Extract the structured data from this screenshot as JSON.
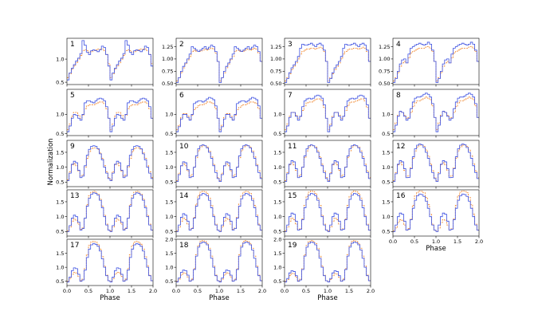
{
  "chart_data": {
    "type": "line",
    "layout": "small-multiples grid, 5 rows x 4 columns, 19 panels",
    "xlabel": "Phase",
    "ylabel": "Normalization",
    "xlim": [
      0.0,
      2.0
    ],
    "x_ticks": [
      "0.0",
      "0.5",
      "1.0",
      "1.5",
      "2.0"
    ],
    "line_style": "step",
    "series_colors": {
      "series_1": "#3b4fe0",
      "series_2": "#f07f20"
    },
    "series_styles": {
      "series_1": "solid",
      "series_2": "dashed"
    },
    "panels": [
      {
        "label": "1",
        "ylim": [
          0.45,
          1.45
        ],
        "y_ticks": [
          "0.5",
          "1.0"
        ]
      },
      {
        "label": "2",
        "ylim": [
          0.48,
          1.42
        ],
        "y_ticks": [
          "0.50",
          "0.75",
          "1.00",
          "1.25"
        ]
      },
      {
        "label": "3",
        "ylim": [
          0.48,
          1.42
        ],
        "y_ticks": [
          "0.50",
          "0.75",
          "1.00",
          "1.25"
        ]
      },
      {
        "label": "4",
        "ylim": [
          0.48,
          1.42
        ],
        "y_ticks": [
          "0.50",
          "0.75",
          "1.00",
          "1.25"
        ]
      },
      {
        "label": "5",
        "ylim": [
          0.45,
          1.65
        ],
        "y_ticks": [
          "0.5",
          "1.0"
        ]
      },
      {
        "label": "6",
        "ylim": [
          0.45,
          1.65
        ],
        "y_ticks": [
          "0.5",
          "1.0"
        ]
      },
      {
        "label": "7",
        "ylim": [
          0.45,
          1.65
        ],
        "y_ticks": [
          "0.5",
          "1.0"
        ]
      },
      {
        "label": "8",
        "ylim": [
          0.45,
          1.65
        ],
        "y_ticks": [
          "0.5",
          "1.0"
        ]
      },
      {
        "label": "9",
        "ylim": [
          0.35,
          1.9
        ],
        "y_ticks": [
          "0.5",
          "1.0",
          "1.5"
        ]
      },
      {
        "label": "10",
        "ylim": [
          0.35,
          1.9
        ],
        "y_ticks": [
          "0.5",
          "1.0",
          "1.5"
        ]
      },
      {
        "label": "11",
        "ylim": [
          0.35,
          1.9
        ],
        "y_ticks": [
          "0.5",
          "1.0",
          "1.5"
        ]
      },
      {
        "label": "12",
        "ylim": [
          0.35,
          1.9
        ],
        "y_ticks": [
          "0.5",
          "1.0",
          "1.5"
        ]
      },
      {
        "label": "13",
        "ylim": [
          0.35,
          1.9
        ],
        "y_ticks": [
          "0.5",
          "1.0",
          "1.5"
        ]
      },
      {
        "label": "14",
        "ylim": [
          0.35,
          1.9
        ],
        "y_ticks": [
          "0.5",
          "1.0",
          "1.5"
        ]
      },
      {
        "label": "15",
        "ylim": [
          0.35,
          1.9
        ],
        "y_ticks": [
          "0.5",
          "1.0",
          "1.5"
        ]
      },
      {
        "label": "16",
        "ylim": [
          0.35,
          1.9
        ],
        "y_ticks": [
          "0.5",
          "1.0",
          "1.5"
        ]
      },
      {
        "label": "17",
        "ylim": [
          0.35,
          2.0
        ],
        "y_ticks": [
          "0.5",
          "1.0",
          "1.5"
        ]
      },
      {
        "label": "18",
        "ylim": [
          0.35,
          2.0
        ],
        "y_ticks": [
          "0.5",
          "1.0",
          "1.5",
          "2.0"
        ]
      },
      {
        "label": "19",
        "ylim": [
          0.35,
          2.0
        ],
        "y_ticks": [
          "0.5",
          "1.0",
          "1.5",
          "2.0"
        ]
      }
    ],
    "x_step_points": [
      0.0,
      0.05,
      0.1,
      0.15,
      0.2,
      0.25,
      0.3,
      0.35,
      0.4,
      0.45,
      0.5,
      0.55,
      0.6,
      0.65,
      0.7,
      0.75,
      0.8,
      0.85,
      0.9,
      0.95,
      1.0
    ],
    "series_profiles_one_cycle": [
      {
        "series_1": [
          0.55,
          0.7,
          0.8,
          0.88,
          0.96,
          1.02,
          1.12,
          1.4,
          1.3,
          1.15,
          1.1,
          1.18,
          1.2,
          1.18,
          1.16,
          1.2,
          1.28,
          1.25,
          1.1,
          0.85,
          0.6
        ],
        "series_2": [
          0.6,
          0.68,
          0.78,
          0.85,
          0.92,
          1.0,
          1.08,
          1.18,
          1.2,
          1.18,
          1.15,
          1.16,
          1.18,
          1.2,
          1.22,
          1.22,
          1.22,
          1.18,
          1.1,
          0.9,
          0.65
        ]
      },
      {
        "series_1": [
          0.52,
          0.62,
          0.75,
          0.85,
          0.92,
          1.0,
          1.1,
          1.25,
          1.22,
          1.18,
          1.15,
          1.18,
          1.22,
          1.25,
          1.2,
          1.24,
          1.28,
          1.25,
          1.15,
          0.95,
          0.6
        ],
        "series_2": [
          0.55,
          0.62,
          0.72,
          0.82,
          0.9,
          0.98,
          1.05,
          1.15,
          1.18,
          1.16,
          1.15,
          1.16,
          1.18,
          1.2,
          1.18,
          1.2,
          1.22,
          1.2,
          1.12,
          0.95,
          0.62
        ]
      },
      {
        "series_1": [
          0.52,
          0.6,
          0.72,
          0.82,
          0.88,
          0.95,
          1.05,
          1.22,
          1.3,
          1.28,
          1.28,
          1.3,
          1.32,
          1.28,
          1.25,
          1.3,
          1.32,
          1.28,
          1.18,
          0.95,
          0.58
        ],
        "series_2": [
          0.55,
          0.62,
          0.7,
          0.78,
          0.85,
          0.92,
          1.0,
          1.1,
          1.15,
          1.18,
          1.2,
          1.2,
          1.22,
          1.22,
          1.2,
          1.22,
          1.24,
          1.22,
          1.15,
          0.95,
          0.62
        ]
      },
      {
        "series_1": [
          0.52,
          0.6,
          0.75,
          0.9,
          0.98,
          1.0,
          0.92,
          1.1,
          1.22,
          1.25,
          1.28,
          1.3,
          1.32,
          1.3,
          1.28,
          1.3,
          1.34,
          1.3,
          1.18,
          0.95,
          0.58
        ],
        "series_2": [
          0.55,
          0.62,
          0.72,
          0.85,
          0.92,
          0.95,
          0.92,
          1.02,
          1.12,
          1.15,
          1.18,
          1.2,
          1.22,
          1.22,
          1.22,
          1.24,
          1.25,
          1.22,
          1.15,
          0.95,
          0.62
        ]
      },
      {
        "series_1": [
          0.55,
          0.7,
          0.9,
          1.0,
          0.98,
          0.9,
          0.85,
          1.0,
          1.3,
          1.35,
          1.35,
          1.32,
          1.3,
          1.35,
          1.4,
          1.42,
          1.4,
          1.35,
          1.2,
          0.9,
          0.55
        ],
        "series_2": [
          0.6,
          0.75,
          0.95,
          1.05,
          1.05,
          0.98,
          0.9,
          0.98,
          1.15,
          1.22,
          1.25,
          1.25,
          1.25,
          1.28,
          1.3,
          1.32,
          1.32,
          1.28,
          1.15,
          0.9,
          0.6
        ]
      },
      {
        "series_1": [
          0.55,
          0.68,
          0.88,
          1.0,
          1.0,
          0.92,
          0.85,
          1.0,
          1.28,
          1.32,
          1.35,
          1.35,
          1.32,
          1.35,
          1.4,
          1.44,
          1.42,
          1.38,
          1.22,
          0.9,
          0.55
        ],
        "series_2": [
          0.6,
          0.72,
          0.92,
          1.02,
          1.02,
          0.95,
          0.88,
          0.98,
          1.12,
          1.18,
          1.22,
          1.25,
          1.25,
          1.28,
          1.32,
          1.32,
          1.3,
          1.28,
          1.15,
          0.9,
          0.6
        ]
      },
      {
        "series_1": [
          0.55,
          0.7,
          0.92,
          1.05,
          1.05,
          0.95,
          0.85,
          0.95,
          1.2,
          1.35,
          1.4,
          1.42,
          1.4,
          1.42,
          1.48,
          1.5,
          1.48,
          1.42,
          1.25,
          0.9,
          0.55
        ],
        "series_2": [
          0.6,
          0.75,
          0.95,
          1.05,
          1.05,
          0.98,
          0.9,
          0.95,
          1.1,
          1.22,
          1.3,
          1.32,
          1.32,
          1.35,
          1.38,
          1.4,
          1.4,
          1.35,
          1.18,
          0.9,
          0.6
        ]
      },
      {
        "series_1": [
          0.55,
          0.72,
          0.95,
          1.08,
          1.05,
          0.95,
          0.85,
          0.9,
          1.15,
          1.32,
          1.42,
          1.45,
          1.45,
          1.48,
          1.52,
          1.55,
          1.52,
          1.45,
          1.28,
          0.92,
          0.55
        ],
        "series_2": [
          0.6,
          0.78,
          0.98,
          1.08,
          1.05,
          0.98,
          0.9,
          0.92,
          1.05,
          1.2,
          1.3,
          1.35,
          1.35,
          1.38,
          1.42,
          1.45,
          1.42,
          1.38,
          1.22,
          0.92,
          0.6
        ]
      },
      {
        "series_1": [
          0.55,
          0.8,
          1.1,
          1.2,
          1.15,
          0.9,
          0.65,
          0.7,
          1.05,
          1.4,
          1.6,
          1.7,
          1.72,
          1.7,
          1.62,
          1.45,
          1.25,
          1.0,
          0.8,
          0.62,
          0.52
        ],
        "series_2": [
          0.58,
          0.85,
          1.08,
          1.12,
          1.05,
          0.88,
          0.7,
          0.75,
          1.0,
          1.3,
          1.52,
          1.62,
          1.65,
          1.65,
          1.6,
          1.48,
          1.3,
          1.05,
          0.85,
          0.65,
          0.55
        ]
      },
      {
        "series_1": [
          0.52,
          0.75,
          1.05,
          1.18,
          1.15,
          0.92,
          0.65,
          0.68,
          1.0,
          1.38,
          1.62,
          1.72,
          1.75,
          1.72,
          1.65,
          1.5,
          1.3,
          1.05,
          0.82,
          0.62,
          0.5
        ],
        "series_2": [
          0.55,
          0.8,
          1.05,
          1.12,
          1.05,
          0.88,
          0.7,
          0.75,
          1.0,
          1.32,
          1.55,
          1.68,
          1.72,
          1.72,
          1.68,
          1.55,
          1.35,
          1.1,
          0.88,
          0.65,
          0.52
        ]
      },
      {
        "series_1": [
          0.52,
          0.78,
          1.1,
          1.22,
          1.18,
          0.95,
          0.65,
          0.68,
          1.0,
          1.38,
          1.62,
          1.72,
          1.75,
          1.72,
          1.65,
          1.5,
          1.3,
          1.05,
          0.82,
          0.62,
          0.5
        ],
        "series_2": [
          0.55,
          0.82,
          1.08,
          1.15,
          1.08,
          0.9,
          0.7,
          0.75,
          1.0,
          1.32,
          1.55,
          1.68,
          1.72,
          1.72,
          1.68,
          1.55,
          1.35,
          1.1,
          0.88,
          0.65,
          0.52
        ]
      },
      {
        "series_1": [
          0.52,
          0.78,
          1.1,
          1.22,
          1.18,
          0.95,
          0.65,
          0.66,
          0.95,
          1.35,
          1.62,
          1.74,
          1.78,
          1.75,
          1.66,
          1.5,
          1.3,
          1.05,
          0.82,
          0.62,
          0.5
        ],
        "series_2": [
          0.55,
          0.82,
          1.08,
          1.15,
          1.08,
          0.9,
          0.7,
          0.72,
          0.98,
          1.3,
          1.55,
          1.68,
          1.74,
          1.74,
          1.7,
          1.58,
          1.38,
          1.12,
          0.88,
          0.65,
          0.52
        ]
      },
      {
        "series_1": [
          0.5,
          0.7,
          0.95,
          1.05,
          1.0,
          0.82,
          0.55,
          0.6,
          0.95,
          1.35,
          1.62,
          1.75,
          1.8,
          1.78,
          1.72,
          1.55,
          1.3,
          1.0,
          0.72,
          0.55,
          0.48
        ],
        "series_2": [
          0.52,
          0.65,
          0.85,
          0.92,
          0.88,
          0.75,
          0.58,
          0.62,
          0.95,
          1.4,
          1.7,
          1.82,
          1.85,
          1.82,
          1.75,
          1.6,
          1.35,
          1.05,
          0.75,
          0.55,
          0.5
        ]
      },
      {
        "series_1": [
          0.5,
          0.72,
          0.98,
          1.1,
          1.05,
          0.85,
          0.55,
          0.6,
          0.95,
          1.35,
          1.6,
          1.72,
          1.78,
          1.76,
          1.7,
          1.55,
          1.3,
          1.0,
          0.72,
          0.55,
          0.48
        ],
        "series_2": [
          0.52,
          0.65,
          0.85,
          0.95,
          0.9,
          0.75,
          0.58,
          0.62,
          0.98,
          1.42,
          1.7,
          1.82,
          1.85,
          1.84,
          1.78,
          1.62,
          1.38,
          1.05,
          0.75,
          0.55,
          0.5
        ]
      },
      {
        "series_1": [
          0.5,
          0.72,
          1.0,
          1.12,
          1.08,
          0.85,
          0.55,
          0.58,
          0.9,
          1.3,
          1.58,
          1.72,
          1.78,
          1.76,
          1.7,
          1.55,
          1.3,
          1.0,
          0.72,
          0.55,
          0.48
        ],
        "series_2": [
          0.52,
          0.65,
          0.85,
          0.95,
          0.9,
          0.75,
          0.58,
          0.6,
          0.92,
          1.38,
          1.68,
          1.82,
          1.86,
          1.84,
          1.78,
          1.62,
          1.38,
          1.05,
          0.75,
          0.55,
          0.5
        ]
      },
      {
        "series_1": [
          0.5,
          0.72,
          1.0,
          1.12,
          1.08,
          0.85,
          0.55,
          0.58,
          0.9,
          1.28,
          1.55,
          1.7,
          1.76,
          1.74,
          1.68,
          1.52,
          1.28,
          1.0,
          0.72,
          0.55,
          0.48
        ],
        "series_2": [
          0.52,
          0.62,
          0.8,
          0.9,
          0.88,
          0.72,
          0.55,
          0.6,
          0.92,
          1.38,
          1.7,
          1.82,
          1.86,
          1.85,
          1.8,
          1.65,
          1.4,
          1.08,
          0.75,
          0.55,
          0.5
        ]
      },
      {
        "series_1": [
          0.48,
          0.65,
          0.88,
          0.98,
          0.95,
          0.75,
          0.5,
          0.55,
          0.9,
          1.35,
          1.65,
          1.8,
          1.85,
          1.82,
          1.75,
          1.58,
          1.3,
          1.0,
          0.7,
          0.52,
          0.46
        ],
        "series_2": [
          0.5,
          0.6,
          0.75,
          0.82,
          0.8,
          0.68,
          0.52,
          0.58,
          0.95,
          1.45,
          1.78,
          1.9,
          1.92,
          1.9,
          1.82,
          1.65,
          1.38,
          1.05,
          0.72,
          0.52,
          0.48
        ]
      },
      {
        "series_1": [
          0.48,
          0.62,
          0.82,
          0.9,
          0.88,
          0.72,
          0.5,
          0.55,
          0.92,
          1.4,
          1.72,
          1.86,
          1.9,
          1.88,
          1.8,
          1.62,
          1.32,
          1.0,
          0.7,
          0.52,
          0.46
        ],
        "series_2": [
          0.5,
          0.58,
          0.72,
          0.8,
          0.78,
          0.66,
          0.52,
          0.58,
          0.95,
          1.45,
          1.78,
          1.92,
          1.95,
          1.92,
          1.85,
          1.68,
          1.4,
          1.05,
          0.72,
          0.52,
          0.48
        ]
      },
      {
        "series_1": [
          0.48,
          0.6,
          0.8,
          0.88,
          0.85,
          0.7,
          0.5,
          0.55,
          0.92,
          1.4,
          1.72,
          1.86,
          1.9,
          1.88,
          1.8,
          1.62,
          1.32,
          1.0,
          0.7,
          0.52,
          0.46
        ],
        "series_2": [
          0.5,
          0.56,
          0.7,
          0.78,
          0.76,
          0.65,
          0.52,
          0.58,
          0.95,
          1.45,
          1.78,
          1.92,
          1.95,
          1.92,
          1.85,
          1.68,
          1.4,
          1.05,
          0.72,
          0.52,
          0.48
        ]
      }
    ]
  }
}
